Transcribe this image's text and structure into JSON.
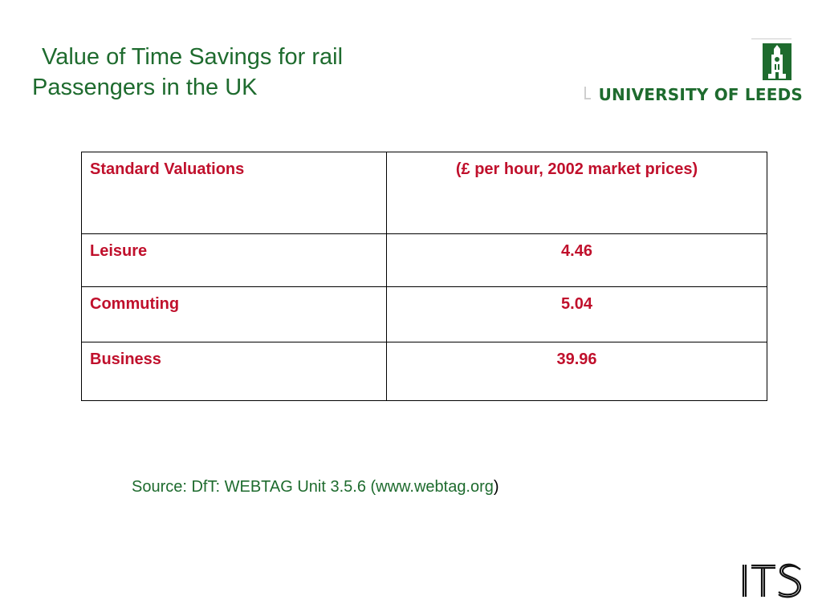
{
  "slide": {
    "title_line_1": "Value of Time Savings for rail",
    "title_line_2": "Passengers in the UK"
  },
  "logos": {
    "university_wordmark": "UNIVERSITY OF LEEDS",
    "its_mark": "ITS",
    "brand_green": "#1e6b2e"
  },
  "table": {
    "header": {
      "label": "Standard Valuations",
      "value": "(£ per hour, 2002 market prices)"
    },
    "rows": [
      {
        "label": "Leisure",
        "value": "4.46"
      },
      {
        "label": "Commuting",
        "value": "5.04"
      },
      {
        "label": "Business",
        "value": "39.96"
      }
    ],
    "text_color": "#c0102c"
  },
  "source": {
    "text": "Source: DfT:  WEBTAG Unit 3.5.6 (www.webtag.org",
    "closing": ")"
  }
}
